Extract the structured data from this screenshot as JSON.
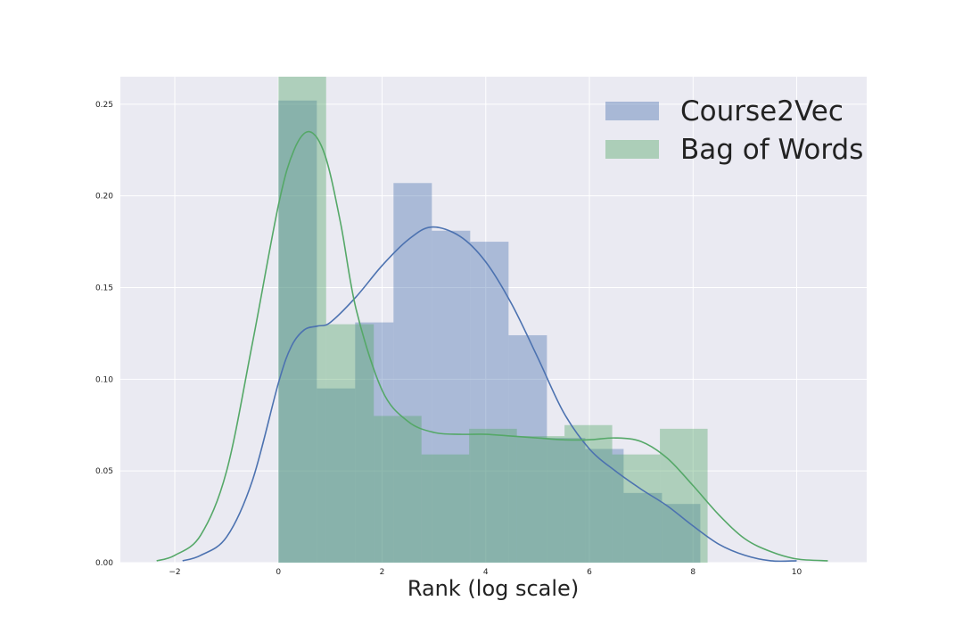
{
  "chart_data": {
    "type": "histogram",
    "title": "",
    "xlabel": "Rank (log scale)",
    "ylabel": "",
    "xlim": [
      -3.05,
      11.35
    ],
    "ylim": [
      0,
      0.265
    ],
    "xticks": [
      -2,
      0,
      2,
      4,
      6,
      8,
      10
    ],
    "xtick_labels": [
      "−2",
      "0",
      "2",
      "4",
      "6",
      "8",
      "10"
    ],
    "yticks": [
      0.0,
      0.05,
      0.1,
      0.15,
      0.2,
      0.25
    ],
    "ytick_labels": [
      "0.00",
      "0.05",
      "0.10",
      "0.15",
      "0.20",
      "0.25"
    ],
    "grid": true,
    "legend_position": "top-right",
    "series": [
      {
        "name": "Course2Vec",
        "color": "#4c72b0",
        "bins": [
          {
            "x0": 0.0,
            "x1": 0.74,
            "y": 0.252
          },
          {
            "x0": 0.74,
            "x1": 1.48,
            "y": 0.095
          },
          {
            "x0": 1.48,
            "x1": 2.22,
            "y": 0.131
          },
          {
            "x0": 2.22,
            "x1": 2.96,
            "y": 0.207
          },
          {
            "x0": 2.96,
            "x1": 3.7,
            "y": 0.181
          },
          {
            "x0": 3.7,
            "x1": 4.44,
            "y": 0.175
          },
          {
            "x0": 4.44,
            "x1": 5.18,
            "y": 0.124
          },
          {
            "x0": 5.18,
            "x1": 5.92,
            "y": 0.068
          },
          {
            "x0": 5.92,
            "x1": 6.66,
            "y": 0.062
          },
          {
            "x0": 6.66,
            "x1": 7.4,
            "y": 0.038
          },
          {
            "x0": 7.4,
            "x1": 8.14,
            "y": 0.032
          }
        ],
        "kde": {
          "x": [
            -1.85,
            -1.5,
            -1.0,
            -0.5,
            0.0,
            0.25,
            0.5,
            0.75,
            1.0,
            1.5,
            2.0,
            2.5,
            2.95,
            3.5,
            4.0,
            4.5,
            5.0,
            5.5,
            6.0,
            6.5,
            7.0,
            7.5,
            8.0,
            8.5,
            9.0,
            9.5,
            10.0
          ],
          "y": [
            0.001,
            0.004,
            0.014,
            0.045,
            0.098,
            0.118,
            0.127,
            0.129,
            0.131,
            0.145,
            0.162,
            0.176,
            0.183,
            0.178,
            0.164,
            0.141,
            0.112,
            0.082,
            0.062,
            0.05,
            0.04,
            0.031,
            0.02,
            0.01,
            0.004,
            0.001,
            0.001
          ]
        }
      },
      {
        "name": "Bag of Words",
        "color": "#55a868",
        "bins": [
          {
            "x0": 0.0,
            "x1": 0.92,
            "y": 0.274
          },
          {
            "x0": 0.92,
            "x1": 1.84,
            "y": 0.13
          },
          {
            "x0": 1.84,
            "x1": 2.76,
            "y": 0.08
          },
          {
            "x0": 2.76,
            "x1": 3.68,
            "y": 0.059
          },
          {
            "x0": 3.68,
            "x1": 4.6,
            "y": 0.073
          },
          {
            "x0": 4.6,
            "x1": 5.52,
            "y": 0.069
          },
          {
            "x0": 5.52,
            "x1": 6.44,
            "y": 0.075
          },
          {
            "x0": 6.44,
            "x1": 7.36,
            "y": 0.059
          },
          {
            "x0": 7.36,
            "x1": 8.28,
            "y": 0.073
          }
        ],
        "kde": {
          "x": [
            -2.35,
            -2.0,
            -1.5,
            -1.0,
            -0.5,
            0.0,
            0.3,
            0.6,
            0.9,
            1.2,
            1.5,
            2.0,
            2.5,
            3.0,
            3.5,
            4.0,
            4.5,
            5.0,
            5.5,
            6.0,
            6.5,
            7.0,
            7.5,
            8.0,
            8.5,
            9.0,
            9.5,
            10.0,
            10.6
          ],
          "y": [
            0.001,
            0.004,
            0.015,
            0.05,
            0.12,
            0.195,
            0.225,
            0.235,
            0.222,
            0.185,
            0.138,
            0.094,
            0.077,
            0.071,
            0.07,
            0.07,
            0.069,
            0.068,
            0.067,
            0.067,
            0.068,
            0.066,
            0.057,
            0.042,
            0.026,
            0.013,
            0.006,
            0.002,
            0.001
          ]
        }
      }
    ]
  }
}
